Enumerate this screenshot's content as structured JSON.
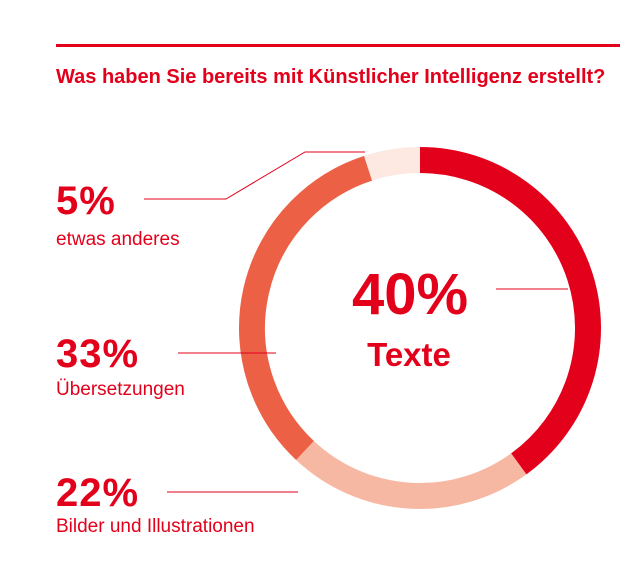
{
  "title": "Was haben Sie bereits mit Künstlicher Intelligenz erstellt?",
  "colors": {
    "accent": "#e3001b",
    "texte": "#e3001b",
    "uebersetzungen": "#ec6146",
    "bilder": "#f7b8a3",
    "anderes": "#fde9e1"
  },
  "chart_data": {
    "type": "pie",
    "variant": "donut",
    "title": "Was haben Sie bereits mit Künstlicher Intelligenz erstellt?",
    "unit": "%",
    "slices": [
      {
        "label": "Texte",
        "value": 40,
        "display": "40%",
        "color": "#e3001b"
      },
      {
        "label": "Bilder und Illustrationen",
        "value": 22,
        "display": "22%",
        "color": "#f7b8a3"
      },
      {
        "label": "Übersetzungen",
        "value": 33,
        "display": "33%",
        "color": "#ec6146"
      },
      {
        "label": "etwas anderes",
        "value": 5,
        "display": "5%",
        "color": "#fde9e1"
      }
    ]
  },
  "labels": {
    "center_value": "40%",
    "center_label": "Texte",
    "anderes_value": "5%",
    "anderes_label": "etwas anderes",
    "uebersetzungen_value": "33%",
    "uebersetzungen_label": "Übersetzungen",
    "bilder_value": "22%",
    "bilder_label": "Bilder und Illustrationen"
  }
}
